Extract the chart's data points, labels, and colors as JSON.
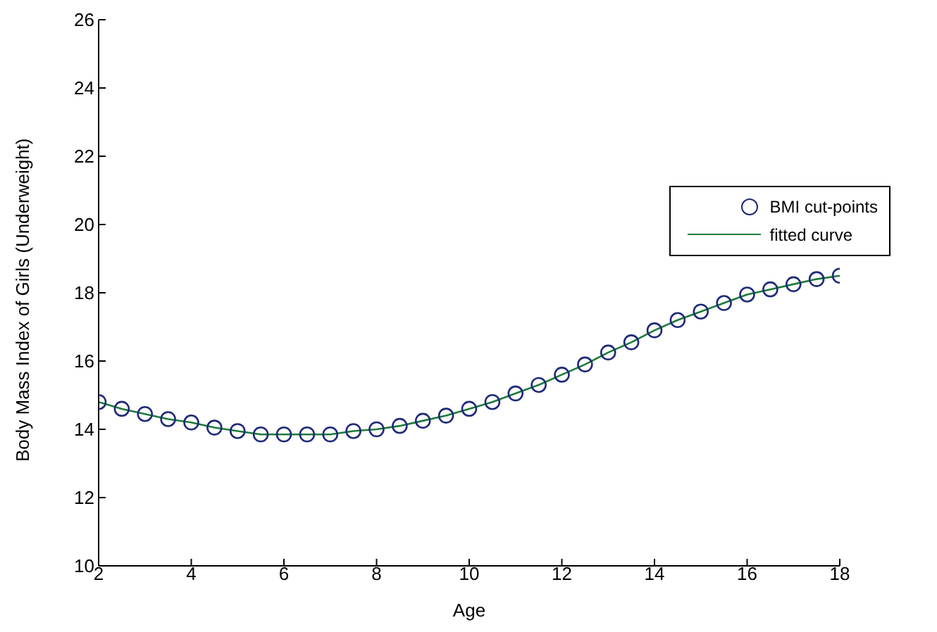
{
  "chart_data": {
    "type": "scatter",
    "xlabel": "Age",
    "ylabel": "Body Mass Index of Girls (Underweight)",
    "x": [
      2,
      2.5,
      3,
      3.5,
      4,
      4.5,
      5,
      5.5,
      6,
      6.5,
      7,
      7.5,
      8,
      8.5,
      9,
      9.5,
      10,
      10.5,
      11,
      11.5,
      12,
      12.5,
      13,
      13.5,
      14,
      14.5,
      15,
      15.5,
      16,
      16.5,
      17,
      17.5,
      18
    ],
    "series": [
      {
        "name": "BMI cut-points",
        "type": "scatter",
        "marker": "circle",
        "color": "#1f2a7a",
        "values": [
          14.8,
          14.6,
          14.45,
          14.3,
          14.2,
          14.05,
          13.95,
          13.85,
          13.85,
          13.85,
          13.85,
          13.95,
          14.0,
          14.1,
          14.25,
          14.4,
          14.6,
          14.8,
          15.05,
          15.3,
          15.6,
          15.9,
          16.25,
          16.55,
          16.9,
          17.2,
          17.45,
          17.7,
          17.95,
          18.1,
          18.25,
          18.4,
          18.5
        ]
      },
      {
        "name": "fitted curve",
        "type": "line",
        "marker": "none",
        "line_style": "solid",
        "color": "#1e7a3a",
        "values": [
          14.8,
          14.6,
          14.45,
          14.3,
          14.2,
          14.05,
          13.95,
          13.85,
          13.85,
          13.85,
          13.85,
          13.95,
          14.0,
          14.1,
          14.25,
          14.4,
          14.6,
          14.8,
          15.05,
          15.3,
          15.6,
          15.9,
          16.25,
          16.55,
          16.9,
          17.2,
          17.45,
          17.7,
          17.95,
          18.1,
          18.25,
          18.4,
          18.5
        ]
      }
    ],
    "xlim": [
      2,
      18
    ],
    "xticks": [
      2,
      4,
      6,
      8,
      10,
      12,
      14,
      16,
      18
    ],
    "ylim": [
      10,
      26
    ],
    "yticks": [
      10,
      12,
      14,
      16,
      18,
      20,
      22,
      24,
      26
    ],
    "grid": false,
    "legend": "right"
  }
}
